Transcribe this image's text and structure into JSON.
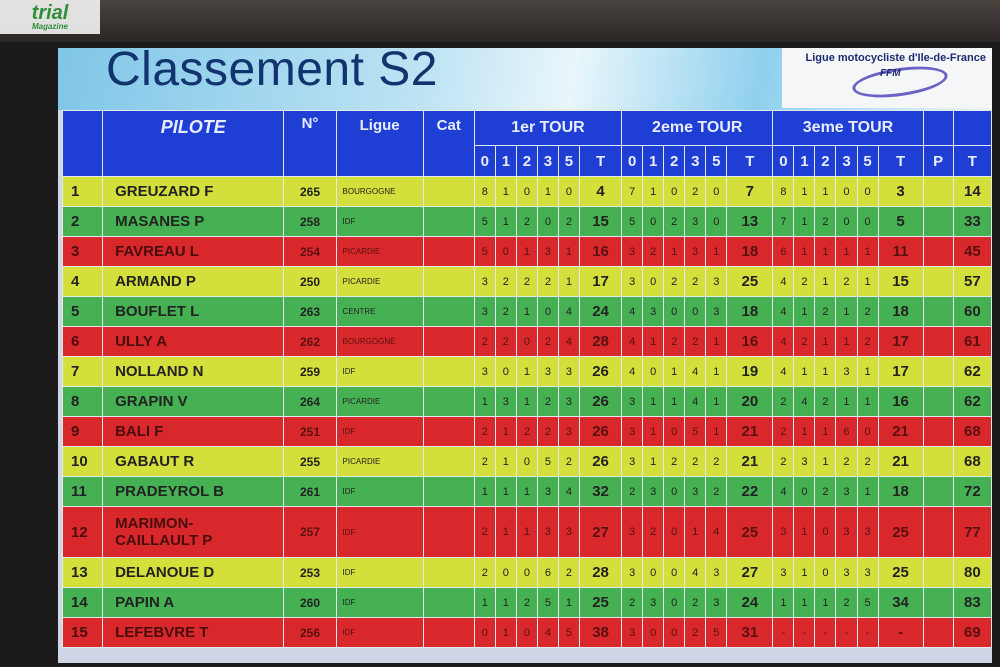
{
  "watermark": {
    "brand": "trial",
    "sub": "Magazine"
  },
  "banner": {
    "title": "Classement S2",
    "league": "Ligue motocycliste d'Ile-de-France",
    "league_logo": "FFM"
  },
  "colors": {
    "header": "#1f3fd4",
    "yellow": "#d3df3b",
    "green": "#46b152",
    "red": "#d9282c"
  },
  "headers": {
    "pilote": "PILOTE",
    "num": "N°",
    "ligue": "Ligue",
    "cat": "Cat",
    "tour1": "1er TOUR",
    "tour2": "2eme TOUR",
    "tour3": "3eme TOUR",
    "sub": [
      "0",
      "1",
      "2",
      "3",
      "5",
      "T"
    ],
    "p": "P",
    "t": "T"
  },
  "rows": [
    {
      "rank": "1",
      "name": "GREUZARD  F",
      "num": "265",
      "ligue": "BOURGOGNE",
      "cat": "",
      "color": "yellow",
      "t1": [
        "8",
        "1",
        "0",
        "1",
        "0",
        "4"
      ],
      "t2": [
        "7",
        "1",
        "0",
        "2",
        "0",
        "7"
      ],
      "t3": [
        "8",
        "1",
        "1",
        "0",
        "0",
        "3"
      ],
      "p": "",
      "total": "14"
    },
    {
      "rank": "2",
      "name": "MASANES  P",
      "num": "258",
      "ligue": "IDF",
      "cat": "",
      "color": "green",
      "t1": [
        "5",
        "1",
        "2",
        "0",
        "2",
        "15"
      ],
      "t2": [
        "5",
        "0",
        "2",
        "3",
        "0",
        "13"
      ],
      "t3": [
        "7",
        "1",
        "2",
        "0",
        "0",
        "5"
      ],
      "p": "",
      "total": "33"
    },
    {
      "rank": "3",
      "name": "FAVREAU  L",
      "num": "254",
      "ligue": "PICARDIE",
      "cat": "",
      "color": "red",
      "t1": [
        "5",
        "0",
        "1",
        "3",
        "1",
        "16"
      ],
      "t2": [
        "3",
        "2",
        "1",
        "3",
        "1",
        "18"
      ],
      "t3": [
        "6",
        "1",
        "1",
        "1",
        "1",
        "11"
      ],
      "p": "",
      "total": "45"
    },
    {
      "rank": "4",
      "name": "ARMAND  P",
      "num": "250",
      "ligue": "PICARDIE",
      "cat": "",
      "color": "yellow",
      "t1": [
        "3",
        "2",
        "2",
        "2",
        "1",
        "17"
      ],
      "t2": [
        "3",
        "0",
        "2",
        "2",
        "3",
        "25"
      ],
      "t3": [
        "4",
        "2",
        "1",
        "2",
        "1",
        "15"
      ],
      "p": "",
      "total": "57"
    },
    {
      "rank": "5",
      "name": "BOUFLET  L",
      "num": "263",
      "ligue": "CENTRE",
      "cat": "",
      "color": "green",
      "t1": [
        "3",
        "2",
        "1",
        "0",
        "4",
        "24"
      ],
      "t2": [
        "4",
        "3",
        "0",
        "0",
        "3",
        "18"
      ],
      "t3": [
        "4",
        "1",
        "2",
        "1",
        "2",
        "18"
      ],
      "p": "",
      "total": "60"
    },
    {
      "rank": "6",
      "name": "ULLY  A",
      "num": "262",
      "ligue": "BOURGOGNE",
      "cat": "",
      "color": "red",
      "t1": [
        "2",
        "2",
        "0",
        "2",
        "4",
        "28"
      ],
      "t2": [
        "4",
        "1",
        "2",
        "2",
        "1",
        "16"
      ],
      "t3": [
        "4",
        "2",
        "1",
        "1",
        "2",
        "17"
      ],
      "p": "",
      "total": "61"
    },
    {
      "rank": "7",
      "name": "NOLLAND  N",
      "num": "259",
      "ligue": "IDF",
      "cat": "",
      "color": "yellow",
      "t1": [
        "3",
        "0",
        "1",
        "3",
        "3",
        "26"
      ],
      "t2": [
        "4",
        "0",
        "1",
        "4",
        "1",
        "19"
      ],
      "t3": [
        "4",
        "1",
        "1",
        "3",
        "1",
        "17"
      ],
      "p": "",
      "total": "62"
    },
    {
      "rank": "8",
      "name": "GRAPIN  V",
      "num": "264",
      "ligue": "PICARDIE",
      "cat": "",
      "color": "green",
      "t1": [
        "1",
        "3",
        "1",
        "2",
        "3",
        "26"
      ],
      "t2": [
        "3",
        "1",
        "1",
        "4",
        "1",
        "20"
      ],
      "t3": [
        "2",
        "4",
        "2",
        "1",
        "1",
        "16"
      ],
      "p": "",
      "total": "62"
    },
    {
      "rank": "9",
      "name": "BALI  F",
      "num": "251",
      "ligue": "IDF",
      "cat": "",
      "color": "red",
      "t1": [
        "2",
        "1",
        "2",
        "2",
        "3",
        "26"
      ],
      "t2": [
        "3",
        "1",
        "0",
        "5",
        "1",
        "21"
      ],
      "t3": [
        "2",
        "1",
        "1",
        "6",
        "0",
        "21"
      ],
      "p": "",
      "total": "68"
    },
    {
      "rank": "10",
      "name": "GABAUT  R",
      "num": "255",
      "ligue": "PICARDIE",
      "cat": "",
      "color": "yellow",
      "t1": [
        "2",
        "1",
        "0",
        "5",
        "2",
        "26"
      ],
      "t2": [
        "3",
        "1",
        "2",
        "2",
        "2",
        "21"
      ],
      "t3": [
        "2",
        "3",
        "1",
        "2",
        "2",
        "21"
      ],
      "p": "",
      "total": "68"
    },
    {
      "rank": "11",
      "name": "PRADEYROL  B",
      "num": "261",
      "ligue": "IDF",
      "cat": "",
      "color": "green",
      "t1": [
        "1",
        "1",
        "1",
        "3",
        "4",
        "32"
      ],
      "t2": [
        "2",
        "3",
        "0",
        "3",
        "2",
        "22"
      ],
      "t3": [
        "4",
        "0",
        "2",
        "3",
        "1",
        "18"
      ],
      "p": "",
      "total": "72"
    },
    {
      "rank": "12",
      "name": "MARIMON-\nCAILLAULT  P",
      "num": "257",
      "ligue": "IDF",
      "cat": "",
      "color": "red",
      "tall": true,
      "t1": [
        "2",
        "1",
        "1",
        "3",
        "3",
        "27"
      ],
      "t2": [
        "3",
        "2",
        "0",
        "1",
        "4",
        "25"
      ],
      "t3": [
        "3",
        "1",
        "0",
        "3",
        "3",
        "25"
      ],
      "p": "",
      "total": "77"
    },
    {
      "rank": "13",
      "name": "DELANOUE  D",
      "num": "253",
      "ligue": "IDF",
      "cat": "",
      "color": "yellow",
      "t1": [
        "2",
        "0",
        "0",
        "6",
        "2",
        "28"
      ],
      "t2": [
        "3",
        "0",
        "0",
        "4",
        "3",
        "27"
      ],
      "t3": [
        "3",
        "1",
        "0",
        "3",
        "3",
        "25"
      ],
      "p": "",
      "total": "80"
    },
    {
      "rank": "14",
      "name": "PAPIN  A",
      "num": "260",
      "ligue": "IDF",
      "cat": "",
      "color": "green",
      "t1": [
        "1",
        "1",
        "2",
        "5",
        "1",
        "25"
      ],
      "t2": [
        "2",
        "3",
        "0",
        "2",
        "3",
        "24"
      ],
      "t3": [
        "1",
        "1",
        "1",
        "2",
        "5",
        "34"
      ],
      "p": "",
      "total": "83"
    },
    {
      "rank": "15",
      "name": "LEFEBVRE  T",
      "num": "256",
      "ligue": "IDF",
      "cat": "",
      "color": "red",
      "t1": [
        "0",
        "1",
        "0",
        "4",
        "5",
        "38"
      ],
      "t2": [
        "3",
        "0",
        "0",
        "2",
        "5",
        "31"
      ],
      "t3": [
        "-",
        "-",
        "-",
        "-",
        "-",
        "-"
      ],
      "p": "",
      "total": "69"
    }
  ]
}
